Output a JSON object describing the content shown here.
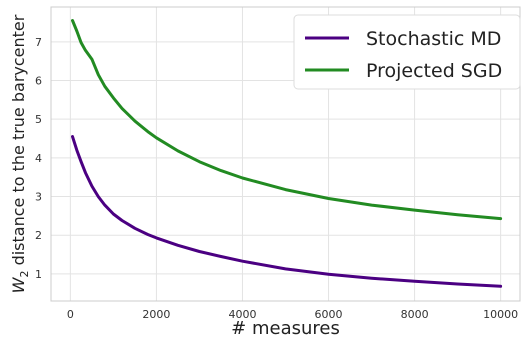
{
  "chart_data": {
    "type": "line",
    "title": "",
    "xlabel": "# measures",
    "ylabel_prefix": "W",
    "ylabel_sub": "2",
    "ylabel_rest": " distance to the true barycenter",
    "xlim": [
      -450,
      10450
    ],
    "ylim": [
      0.3,
      7.9
    ],
    "xticks": [
      0,
      2000,
      4000,
      6000,
      8000,
      10000
    ],
    "yticks": [
      1,
      2,
      3,
      4,
      5,
      6,
      7
    ],
    "grid": true,
    "legend_position": "top-right",
    "series": [
      {
        "name": "Stochastic MD",
        "color": "#4b0082",
        "x": [
          50,
          150,
          250,
          350,
          500,
          650,
          800,
          1000,
          1200,
          1500,
          1800,
          2000,
          2500,
          3000,
          3500,
          4000,
          5000,
          6000,
          7000,
          8000,
          9000,
          10000
        ],
        "y": [
          4.55,
          4.2,
          3.9,
          3.62,
          3.27,
          3.0,
          2.78,
          2.55,
          2.38,
          2.18,
          2.02,
          1.93,
          1.74,
          1.58,
          1.45,
          1.33,
          1.13,
          0.99,
          0.89,
          0.81,
          0.74,
          0.68
        ]
      },
      {
        "name": "Projected SGD",
        "color": "#228b22",
        "x": [
          50,
          150,
          250,
          350,
          500,
          650,
          800,
          1000,
          1200,
          1500,
          1800,
          2000,
          2500,
          3000,
          3500,
          4000,
          5000,
          6000,
          7000,
          8000,
          9000,
          10000
        ],
        "y": [
          7.55,
          7.28,
          6.98,
          6.78,
          6.55,
          6.15,
          5.85,
          5.55,
          5.28,
          4.95,
          4.68,
          4.52,
          4.18,
          3.9,
          3.67,
          3.48,
          3.18,
          2.95,
          2.78,
          2.65,
          2.53,
          2.43
        ]
      }
    ]
  }
}
